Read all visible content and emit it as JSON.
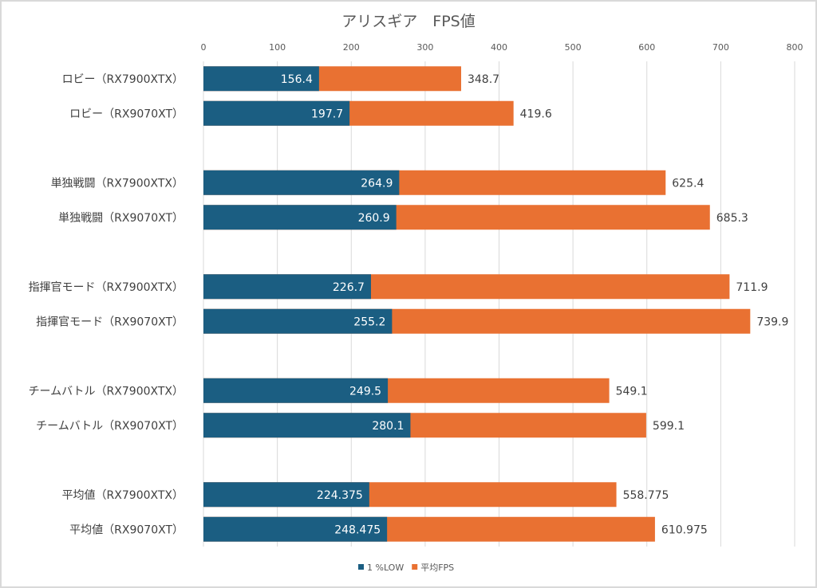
{
  "chart_data": {
    "type": "bar",
    "orientation": "horizontal",
    "title": "アリスギア　FPS値",
    "xlabel": "",
    "ylabel": "",
    "xlim": [
      0,
      800
    ],
    "xticks": [
      0,
      100,
      200,
      300,
      400,
      500,
      600,
      700,
      800
    ],
    "grid": true,
    "bar_mode": "overlap",
    "legend_position": "bottom",
    "categories": [
      "ロビー（RX7900XTX）",
      "ロビー（RX9070XT）",
      "",
      "単独戦闘（RX7900XTX）",
      "単独戦闘（RX9070XT）",
      "",
      "指揮官モード（RX7900XTX）",
      "指揮官モード（RX9070XT）",
      "",
      "チームバトル（RX7900XTX）",
      "チームバトル（RX9070XT）",
      "",
      "平均値（RX7900XTX）",
      "平均値（RX9070XT）"
    ],
    "series": [
      {
        "name": "1 %LOW",
        "color": "#1b5e82",
        "values": [
          156.4,
          197.7,
          null,
          264.9,
          260.9,
          null,
          226.7,
          255.2,
          null,
          249.5,
          280.1,
          null,
          224.375,
          248.475
        ],
        "labels": [
          "156.4",
          "197.7",
          "",
          "264.9",
          "260.9",
          "",
          "226.7",
          "255.2",
          "",
          "249.5",
          "280.1",
          "",
          "224.375",
          "248.475"
        ]
      },
      {
        "name": "平均FPS",
        "color": "#e97132",
        "values": [
          348.7,
          419.6,
          null,
          625.4,
          685.3,
          null,
          711.9,
          739.9,
          null,
          549.1,
          599.1,
          null,
          558.775,
          610.975
        ],
        "labels": [
          "348.7",
          "419.6",
          "",
          "625.4",
          "685.3",
          "",
          "711.9",
          "739.9",
          "",
          "549.1",
          "599.1",
          "",
          "558.775",
          "610.975"
        ]
      }
    ]
  }
}
